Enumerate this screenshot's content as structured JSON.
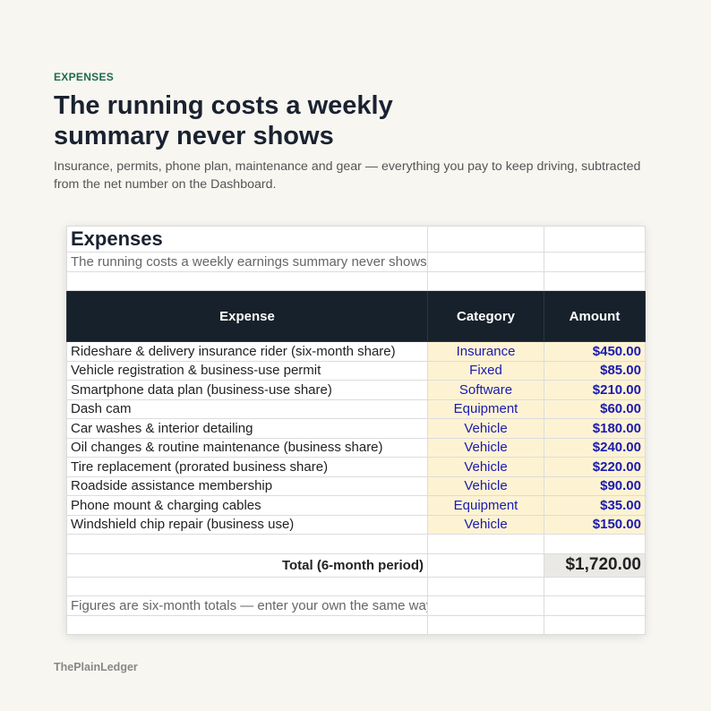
{
  "header": {
    "eyebrow": "EXPENSES",
    "title_lines": [
      "The running costs a weekly",
      "summary never shows"
    ],
    "subtitle": "Insurance, permits, phone plan, maintenance and gear — everything you pay to keep driving, subtracted from the net number on the Dashboard."
  },
  "sheet": {
    "title": "Expenses",
    "subtitle": "The running costs a weekly earnings summary never shows.",
    "columns": [
      "Expense",
      "Category",
      "Amount"
    ],
    "rows": [
      [
        "Rideshare & delivery insurance rider (six-month share)",
        "Insurance",
        "$450.00"
      ],
      [
        "Vehicle registration & business-use permit",
        "Fixed",
        "$85.00"
      ],
      [
        "Smartphone data plan (business-use share)",
        "Software",
        "$210.00"
      ],
      [
        "Dash cam",
        "Equipment",
        "$60.00"
      ],
      [
        "Car washes & interior detailing",
        "Vehicle",
        "$180.00"
      ],
      [
        "Oil changes & routine maintenance (business share)",
        "Vehicle",
        "$240.00"
      ],
      [
        "Tire replacement (prorated business share)",
        "Vehicle",
        "$220.00"
      ],
      [
        "Roadside assistance membership",
        "Vehicle",
        "$90.00"
      ],
      [
        "Phone mount & charging cables",
        "Equipment",
        "$35.00"
      ],
      [
        "Windshield chip repair (business use)",
        "Vehicle",
        "$150.00"
      ]
    ],
    "total_label": "Total (6-month period)",
    "total_amount": "$1,720.00",
    "note": "Figures are six-month totals — enter your own the same way."
  },
  "footer": "ThePlainLedger"
}
